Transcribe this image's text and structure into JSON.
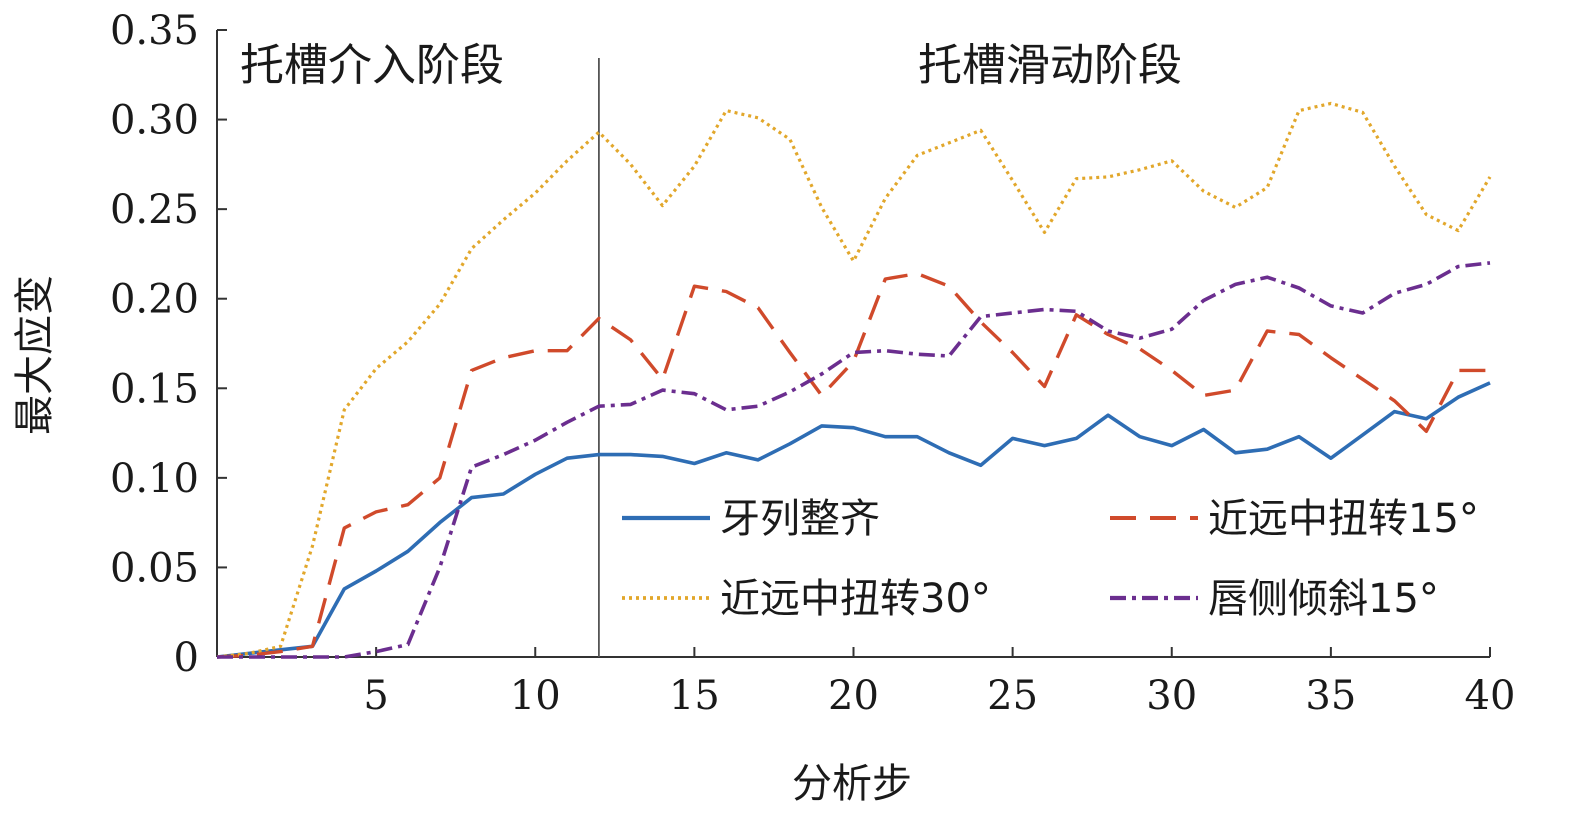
{
  "chart_data": {
    "type": "line",
    "xlabel": "分析步",
    "ylabel": "最大应变",
    "xlim": [
      0,
      40
    ],
    "ylim": [
      0,
      0.35
    ],
    "xticks": [
      "5",
      "10",
      "15",
      "20",
      "25",
      "30",
      "35",
      "40"
    ],
    "yticks": [
      "0",
      "0.05",
      "0.10",
      "0.15",
      "0.20",
      "0.25",
      "0.30",
      "0.35"
    ],
    "annotations": {
      "phase1": "托槽介入阶段",
      "phase2": "托槽滑动阶段",
      "divider_x": 12
    },
    "legend_position": "bottom-right",
    "x": [
      0,
      1,
      2,
      3,
      4,
      5,
      6,
      7,
      8,
      9,
      10,
      11,
      12,
      13,
      14,
      15,
      16,
      17,
      18,
      19,
      20,
      21,
      22,
      23,
      24,
      25,
      26,
      27,
      28,
      29,
      30,
      31,
      32,
      33,
      34,
      35,
      36,
      37,
      38,
      39,
      40
    ],
    "series": [
      {
        "name": "牙列整齐",
        "color": "#2e6db4",
        "dash": "solid",
        "values": [
          0,
          0.002,
          0.004,
          0.006,
          0.038,
          0.048,
          0.059,
          0.075,
          0.089,
          0.091,
          0.102,
          0.111,
          0.113,
          0.113,
          0.112,
          0.108,
          0.114,
          0.11,
          0.119,
          0.129,
          0.128,
          0.123,
          0.123,
          0.114,
          0.107,
          0.122,
          0.118,
          0.122,
          0.135,
          0.123,
          0.118,
          0.127,
          0.114,
          0.116,
          0.123,
          0.111,
          0.124,
          0.137,
          0.133,
          0.145,
          0.153
        ]
      },
      {
        "name": "近远中扭转15°",
        "color": "#d04a2b",
        "dash": "dashed",
        "values": [
          0,
          0.001,
          0.003,
          0.006,
          0.072,
          0.081,
          0.085,
          0.1,
          0.16,
          0.167,
          0.171,
          0.171,
          0.189,
          0.177,
          0.155,
          0.207,
          0.204,
          0.195,
          0.17,
          0.146,
          0.165,
          0.211,
          0.214,
          0.207,
          0.187,
          0.17,
          0.151,
          0.191,
          0.18,
          0.172,
          0.16,
          0.146,
          0.149,
          0.182,
          0.18,
          0.167,
          0.155,
          0.143,
          0.126,
          0.16,
          0.16
        ]
      },
      {
        "name": "近远中扭转30°",
        "color": "#e2a72b",
        "dash": "dotted",
        "values": [
          0,
          0.002,
          0.006,
          0.062,
          0.138,
          0.161,
          0.176,
          0.197,
          0.228,
          0.244,
          0.259,
          0.277,
          0.293,
          0.275,
          0.252,
          0.274,
          0.305,
          0.301,
          0.289,
          0.251,
          0.221,
          0.256,
          0.28,
          0.287,
          0.294,
          0.266,
          0.237,
          0.267,
          0.268,
          0.272,
          0.277,
          0.26,
          0.251,
          0.262,
          0.305,
          0.309,
          0.304,
          0.274,
          0.247,
          0.238,
          0.268
        ]
      },
      {
        "name": "唇侧倾斜15°",
        "color": "#6b2e8f",
        "dash": "dashdot",
        "values": [
          0,
          0,
          0,
          0,
          0,
          0.003,
          0.007,
          0.05,
          0.106,
          0.113,
          0.121,
          0.131,
          0.14,
          0.141,
          0.149,
          0.147,
          0.138,
          0.14,
          0.148,
          0.158,
          0.17,
          0.171,
          0.169,
          0.168,
          0.19,
          0.192,
          0.194,
          0.193,
          0.182,
          0.178,
          0.183,
          0.199,
          0.208,
          0.212,
          0.206,
          0.196,
          0.192,
          0.203,
          0.208,
          0.218,
          0.22
        ]
      }
    ]
  }
}
